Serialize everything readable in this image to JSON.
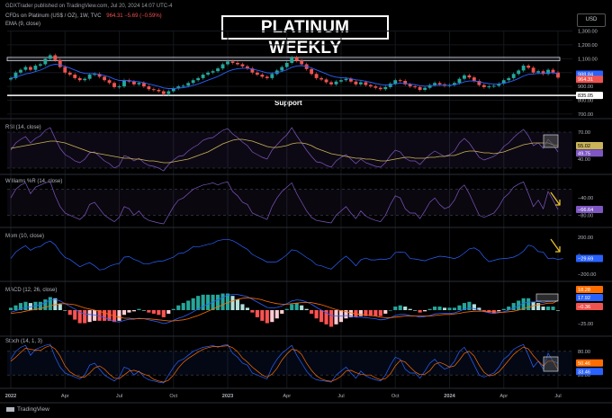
{
  "header": {
    "publisher": "GDXTrader published on TradingView.com, Jul 20, 2024 14:07 UTC-4",
    "symbol": "CFDs on Platinum (US$ / OZ), 1W, TVC",
    "last_values": "964.31 −5.69 (−0.59%)",
    "ema_label": "EMA (9, close)"
  },
  "title": "PLATINUM WEEKLY",
  "currency_button": "USD",
  "support_label": "Support",
  "footer": "TradingView",
  "colors": {
    "up": "#26a69a",
    "down": "#ef5350",
    "ema": "#2962ff",
    "rsi": "#7e57c2",
    "rsi_ma": "#c9b458",
    "macd": "#2962ff",
    "signal": "#ff6d00",
    "stoch_k": "#2962ff",
    "stoch_d": "#ff6d00",
    "arrow": "#e6c229"
  },
  "chart_data": [
    {
      "type": "candlestick",
      "title": "CFDs on Platinum (US$ / OZ), 1W, TVC",
      "series": [
        {
          "name": "EMA (9, close)"
        }
      ],
      "x_ticks": [
        "2022",
        "Apr",
        "Jul",
        "Oct",
        "2023",
        "Apr",
        "Jul",
        "Oct",
        "2024",
        "Apr",
        "Jul"
      ],
      "y_ticks": [
        1300,
        1200,
        1100,
        1000,
        900,
        800,
        700
      ],
      "y_tick_labels": [
        "1,300.00",
        "1,200.00",
        "1,100.00",
        "1,000.00",
        "900.00",
        "800.00",
        "700.00"
      ],
      "ylim": [
        680,
        1310
      ],
      "price_badges": [
        {
          "value": 988.84,
          "label": "988.84",
          "color": "#2962ff"
        },
        {
          "value": 964.31,
          "label": "964.31",
          "color": "#ef5350"
        },
        {
          "value": 835.05,
          "label": "835.05",
          "color": "#ffffff"
        }
      ],
      "resistance_zone": [
        1085,
        1110
      ],
      "support_level": 835.05,
      "close": [
        960,
        1000,
        1020,
        1040,
        1020,
        1050,
        1060,
        1100,
        1125,
        1090,
        1040,
        1000,
        985,
        960,
        945,
        955,
        985,
        990,
        970,
        945,
        925,
        895,
        900,
        945,
        935,
        915,
        925,
        900,
        880,
        875,
        865,
        845,
        865,
        885,
        900,
        905,
        925,
        945,
        960,
        985,
        1000,
        1010,
        1030,
        1060,
        1080,
        1070,
        1060,
        1045,
        1030,
        1000,
        985,
        970,
        960,
        990,
        1015,
        1040,
        1070,
        1110,
        1085,
        1060,
        1025,
        990,
        960,
        950,
        930,
        915,
        935,
        945,
        955,
        935,
        915,
        930,
        910,
        900,
        890,
        880,
        895,
        920,
        945,
        940,
        915,
        900,
        895,
        875,
        890,
        910,
        925,
        915,
        905,
        910,
        925,
        955,
        980,
        965,
        940,
        910,
        895,
        900,
        905,
        920,
        945,
        960,
        990,
        1015,
        1050,
        1035,
        1000,
        1010,
        990,
        1020,
        1000,
        964
      ]
    },
    {
      "type": "line",
      "title": "RSI (14, close)",
      "series": [
        {
          "name": "RSI"
        }
      ],
      "y_ticks": [
        70,
        40
      ],
      "ylim": [
        25,
        80
      ],
      "badges": [
        {
          "value": 55.02,
          "label": "55.02"
        },
        {
          "value": 49.75,
          "label": "49.75"
        }
      ],
      "values": [
        50,
        58,
        62,
        65,
        58,
        63,
        66,
        72,
        75,
        63,
        52,
        45,
        42,
        38,
        36,
        40,
        47,
        48,
        43,
        38,
        35,
        30,
        33,
        44,
        42,
        38,
        41,
        36,
        33,
        32,
        30,
        27,
        34,
        39,
        43,
        44,
        49,
        53,
        56,
        61,
        63,
        64,
        68,
        72,
        74,
        68,
        64,
        59,
        55,
        48,
        45,
        42,
        40,
        50,
        56,
        62,
        67,
        75,
        66,
        58,
        50,
        43,
        37,
        36,
        33,
        31,
        38,
        42,
        45,
        40,
        35,
        40,
        36,
        34,
        32,
        31,
        36,
        44,
        50,
        48,
        41,
        38,
        38,
        34,
        40,
        45,
        49,
        46,
        43,
        45,
        49,
        58,
        63,
        58,
        50,
        42,
        39,
        41,
        43,
        47,
        54,
        58,
        64,
        69,
        73,
        66,
        55,
        58,
        52,
        62,
        56,
        48
      ],
      "ma": [
        52,
        53,
        54,
        55,
        56,
        57,
        58,
        59,
        60,
        60,
        59,
        58,
        56,
        54,
        52,
        50,
        48,
        47,
        46,
        45,
        44,
        43,
        42,
        41,
        41,
        40,
        40,
        39,
        38,
        38,
        37,
        36,
        36,
        37,
        38,
        39,
        40,
        42,
        44,
        46,
        48,
        51,
        54,
        57,
        59,
        61,
        62,
        62,
        61,
        60,
        58,
        56,
        54,
        53,
        53,
        54,
        55,
        57,
        58,
        58,
        57,
        55,
        52,
        50,
        48,
        46,
        45,
        44,
        43,
        42,
        41,
        41,
        40,
        40,
        39,
        38,
        38,
        39,
        40,
        41,
        42,
        42,
        41,
        41,
        41,
        42,
        42,
        43,
        43,
        44,
        44,
        46,
        48,
        49,
        49,
        48,
        47,
        47,
        46,
        47,
        48,
        50,
        52,
        54,
        56,
        57,
        58,
        58,
        58,
        58,
        56,
        55
      ]
    },
    {
      "type": "line",
      "title": "Williams %R (14, close)",
      "series": [
        {
          "name": "%R"
        }
      ],
      "y_ticks": [
        -40,
        -80
      ],
      "ylim": [
        -100,
        0
      ],
      "badges": [
        {
          "value": -66.64,
          "label": "−66.64"
        }
      ],
      "values": [
        -40,
        -20,
        -10,
        -5,
        -30,
        -15,
        -10,
        -5,
        -2,
        -35,
        -60,
        -75,
        -80,
        -85,
        -90,
        -80,
        -55,
        -50,
        -65,
        -80,
        -88,
        -95,
        -85,
        -60,
        -65,
        -80,
        -70,
        -85,
        -92,
        -95,
        -98,
        -100,
        -80,
        -60,
        -45,
        -40,
        -30,
        -20,
        -15,
        -10,
        -8,
        -5,
        -10,
        -5,
        -3,
        -25,
        -35,
        -50,
        -55,
        -75,
        -80,
        -85,
        -90,
        -60,
        -40,
        -25,
        -15,
        -5,
        -30,
        -50,
        -70,
        -85,
        -92,
        -94,
        -96,
        -98,
        -80,
        -70,
        -60,
        -75,
        -88,
        -70,
        -82,
        -88,
        -92,
        -95,
        -80,
        -55,
        -35,
        -40,
        -65,
        -75,
        -75,
        -88,
        -70,
        -50,
        -40,
        -55,
        -65,
        -60,
        -45,
        -20,
        -10,
        -30,
        -55,
        -80,
        -85,
        -80,
        -75,
        -60,
        -40,
        -30,
        -15,
        -8,
        -3,
        -30,
        -60,
        -45,
        -65,
        -25,
        -45,
        -67
      ]
    },
    {
      "type": "line",
      "title": "Mom (10, close)",
      "series": [
        {
          "name": "Mom"
        }
      ],
      "y_ticks": [
        200,
        0,
        -200
      ],
      "y_tick_labels": [
        "200.00",
        "0",
        "−200.00"
      ],
      "ylim": [
        -250,
        260
      ],
      "badges": [
        {
          "value": -29.69,
          "label": "−29.69"
        }
      ],
      "values": [
        -30,
        40,
        80,
        110,
        60,
        90,
        100,
        140,
        160,
        120,
        40,
        -20,
        -40,
        -80,
        -120,
        -95,
        -75,
        -110,
        -155,
        -145,
        -115,
        -95,
        -85,
        -15,
        -10,
        -40,
        -60,
        -90,
        -90,
        -70,
        -60,
        -55,
        -35,
        -15,
        25,
        30,
        60,
        100,
        95,
        110,
        125,
        135,
        165,
        175,
        180,
        165,
        135,
        100,
        70,
        15,
        -15,
        -40,
        -70,
        -70,
        -65,
        -30,
        10,
        65,
        55,
        20,
        -20,
        -50,
        -100,
        -110,
        -130,
        -145,
        -95,
        -45,
        -5,
        -50,
        -110,
        -45,
        -25,
        -45,
        -45,
        -35,
        -40,
        -25,
        35,
        40,
        35,
        -30,
        -35,
        -45,
        -55,
        -35,
        -20,
        -5,
        -10,
        -20,
        -30,
        -10,
        30,
        75,
        85,
        55,
        -15,
        -65,
        -50,
        -35,
        -30,
        -25,
        -15,
        10,
        50,
        115,
        100,
        45,
        40,
        -30,
        -25,
        -40,
        -30
      ]
    },
    {
      "type": "bar+line",
      "title": "MACD (12, 26, close)",
      "series": [
        {
          "name": "MACD"
        },
        {
          "name": "Signal"
        },
        {
          "name": "Histogram"
        }
      ],
      "y_ticks": [
        25,
        -25
      ],
      "y_tick_labels": [
        "25.00",
        "−25.00"
      ],
      "ylim": [
        -45,
        45
      ],
      "badges": [
        {
          "value": 18.28,
          "label": "18.28"
        },
        {
          "value": 17.92,
          "label": "17.92"
        },
        {
          "value": -0.36,
          "label": "−0.36"
        }
      ],
      "macd": [
        -4,
        -1,
        2,
        5,
        6,
        8,
        10,
        14,
        19,
        20,
        17,
        12,
        7,
        2,
        -4,
        -7,
        -8,
        -9,
        -11,
        -14,
        -17,
        -21,
        -22,
        -19,
        -17,
        -17,
        -15,
        -16,
        -18,
        -20,
        -22,
        -25,
        -23,
        -19,
        -15,
        -12,
        -8,
        -3,
        2,
        7,
        11,
        15,
        19,
        24,
        28,
        29,
        29,
        27,
        25,
        20,
        15,
        10,
        5,
        4,
        5,
        8,
        12,
        17,
        19,
        18,
        15,
        11,
        5,
        0,
        -5,
        -10,
        -11,
        -11,
        -10,
        -11,
        -13,
        -13,
        -14,
        -15,
        -16,
        -18,
        -17,
        -14,
        -10,
        -8,
        -8,
        -10,
        -11,
        -13,
        -12,
        -10,
        -7,
        -6,
        -6,
        -6,
        -5,
        -2,
        2,
        4,
        3,
        0,
        -3,
        -5,
        -6,
        -5,
        -3,
        0,
        4,
        8,
        13,
        15,
        15,
        16,
        14,
        16,
        16,
        18
      ],
      "signal": [
        -6,
        -5,
        -4,
        -2,
        0,
        1,
        3,
        5,
        8,
        10,
        12,
        12,
        11,
        10,
        7,
        4,
        2,
        0,
        -2,
        -5,
        -8,
        -11,
        -13,
        -15,
        -15,
        -16,
        -16,
        -16,
        -16,
        -17,
        -18,
        -19,
        -20,
        -20,
        -19,
        -18,
        -16,
        -13,
        -10,
        -6,
        -2,
        2,
        6,
        10,
        14,
        17,
        20,
        22,
        23,
        22,
        21,
        19,
        16,
        14,
        12,
        11,
        11,
        12,
        13,
        14,
        14,
        14,
        12,
        10,
        7,
        4,
        1,
        -1,
        -3,
        -5,
        -7,
        -8,
        -9,
        -10,
        -11,
        -13,
        -14,
        -14,
        -13,
        -12,
        -11,
        -11,
        -11,
        -11,
        -11,
        -11,
        -10,
        -9,
        -8,
        -8,
        -7,
        -6,
        -4,
        -3,
        -2,
        -2,
        -2,
        -3,
        -3,
        -4,
        -4,
        -3,
        -2,
        0,
        3,
        5,
        8,
        10,
        11,
        13,
        13,
        18
      ]
    },
    {
      "type": "line",
      "title": "Stoch (14, 1, 3)",
      "series": [
        {
          "name": "%K"
        },
        {
          "name": "%D"
        }
      ],
      "y_ticks": [
        80,
        20
      ],
      "y_tick_labels": [
        "80.00",
        "20.00"
      ],
      "ylim": [
        0,
        100
      ],
      "badges": [
        {
          "value": 50.46,
          "label": "50.46"
        },
        {
          "value": 33.46,
          "label": "33.46"
        }
      ],
      "k": [
        60,
        80,
        90,
        95,
        70,
        85,
        90,
        95,
        98,
        65,
        40,
        25,
        20,
        15,
        10,
        20,
        45,
        50,
        35,
        20,
        12,
        5,
        15,
        40,
        35,
        20,
        30,
        15,
        8,
        5,
        2,
        0,
        20,
        40,
        55,
        60,
        70,
        80,
        85,
        90,
        92,
        95,
        90,
        95,
        97,
        75,
        65,
        50,
        45,
        25,
        20,
        15,
        10,
        40,
        60,
        75,
        85,
        95,
        70,
        50,
        30,
        15,
        8,
        6,
        4,
        2,
        20,
        30,
        40,
        25,
        12,
        30,
        18,
        12,
        8,
        5,
        20,
        45,
        65,
        60,
        35,
        25,
        25,
        12,
        30,
        50,
        60,
        45,
        35,
        40,
        55,
        80,
        90,
        70,
        45,
        20,
        15,
        20,
        25,
        40,
        60,
        70,
        85,
        92,
        97,
        70,
        40,
        55,
        35,
        75,
        55,
        50
      ],
      "d": [
        55,
        65,
        77,
        88,
        85,
        83,
        82,
        90,
        94,
        86,
        68,
        43,
        28,
        20,
        15,
        15,
        25,
        38,
        43,
        35,
        22,
        12,
        11,
        20,
        30,
        32,
        28,
        22,
        18,
        9,
        5,
        2,
        7,
        20,
        38,
        52,
        62,
        70,
        78,
        85,
        89,
        92,
        92,
        93,
        94,
        89,
        79,
        63,
        53,
        40,
        30,
        20,
        15,
        22,
        37,
        58,
        73,
        85,
        83,
        72,
        50,
        32,
        18,
        10,
        6,
        4,
        9,
        17,
        30,
        32,
        26,
        22,
        20,
        20,
        13,
        8,
        11,
        23,
        43,
        57,
        53,
        40,
        28,
        21,
        22,
        31,
        47,
        52,
        47,
        40,
        43,
        58,
        75,
        80,
        68,
        45,
        27,
        18,
        20,
        28,
        42,
        57,
        72,
        82,
        91,
        86,
        69,
        55,
        43,
        55,
        55,
        33
      ]
    }
  ]
}
